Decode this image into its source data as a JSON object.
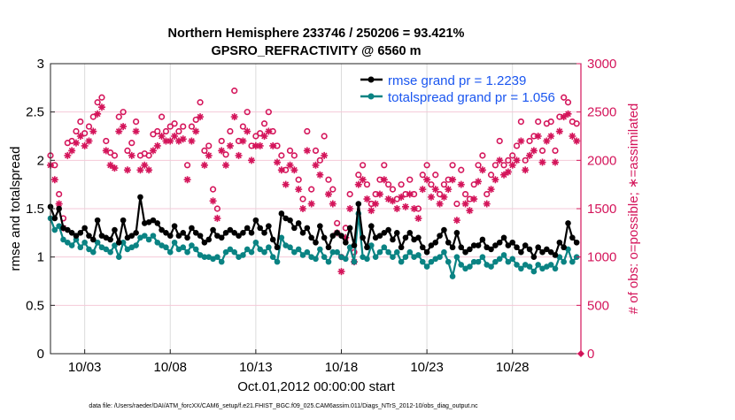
{
  "chart_data": {
    "type": "line",
    "title": [
      "Northern Hemisphere 233746 / 250206 = 93.421%",
      "GPSRO_REFRACTIVITY @ 6560 m"
    ],
    "xlabel": "Oct.01,2012 00:00:00 start",
    "ylabel": "rmse and totalspread",
    "ylabel_right": "# of obs: o=possible; ∗=assimilated",
    "footer": "data file: /Users/raeder/DAI/ATM_forcXX/CAM6_setup/f.e21.FHIST_BGC.f09_025.CAM6assim.011/Diags_NTrS_2012-10/obs_diag_output.nc",
    "x_start": "2012-10-01T00:00",
    "x_step_hours": 6,
    "x_range": [
      "2012-10-01",
      "2012-11-01"
    ],
    "x_ticks": [
      {
        "label": "10/03",
        "day": 2
      },
      {
        "label": "10/08",
        "day": 7
      },
      {
        "label": "10/13",
        "day": 12
      },
      {
        "label": "10/18",
        "day": 17
      },
      {
        "label": "10/23",
        "day": 22
      },
      {
        "label": "10/28",
        "day": 27
      }
    ],
    "ylim": [
      0,
      3
    ],
    "y_ticks": [
      "0",
      "0.5",
      "1",
      "1.5",
      "2",
      "2.5",
      "3"
    ],
    "ylim_right": [
      0,
      3000
    ],
    "y_ticks_right": [
      "0",
      "500",
      "1000",
      "1500",
      "2000",
      "2500",
      "3000"
    ],
    "grid": true,
    "legend_position": "top-right",
    "colors": {
      "rmse": "#000000",
      "totalspread": "#0a8383",
      "obs": "#d4145a",
      "legend_text": "#1a56f0",
      "axis_right": "#d4145a"
    },
    "series": [
      {
        "name": "rmse grand pr = 1.2239",
        "axis": "left",
        "marker": "filled-circle",
        "values": [
          1.52,
          1.4,
          1.5,
          1.3,
          1.28,
          1.25,
          1.22,
          1.25,
          1.3,
          1.22,
          1.18,
          1.38,
          1.22,
          1.2,
          1.18,
          1.28,
          1.15,
          1.38,
          1.2,
          1.22,
          1.25,
          1.62,
          1.35,
          1.36,
          1.38,
          1.35,
          1.28,
          1.25,
          1.22,
          1.32,
          1.22,
          1.25,
          1.2,
          1.3,
          1.25,
          1.22,
          1.15,
          1.18,
          1.28,
          1.22,
          1.2,
          1.25,
          1.28,
          1.25,
          1.22,
          1.25,
          1.3,
          1.25,
          1.38,
          1.3,
          1.25,
          1.32,
          1.18,
          1.1,
          1.45,
          1.4,
          1.38,
          1.3,
          1.35,
          1.25,
          1.3,
          1.2,
          1.15,
          1.32,
          1.2,
          1.1,
          1.22,
          1.25,
          1.22,
          1.15,
          1.3,
          1.12,
          1.55,
          1.2,
          1.1,
          1.32,
          1.2,
          1.22,
          1.25,
          1.28,
          1.18,
          1.25,
          1.1,
          1.2,
          1.25,
          1.18,
          1.2,
          1.1,
          1.05,
          1.12,
          1.15,
          1.22,
          1.28,
          1.15,
          1.1,
          1.25,
          1.1,
          1.05,
          1.08,
          1.12,
          1.12,
          1.18,
          1.1,
          1.08,
          1.12,
          1.15,
          1.2,
          1.12,
          1.15,
          1.1,
          1.05,
          1.12,
          1.08,
          1.0,
          1.1,
          1.05,
          1.08,
          1.05,
          1.02,
          1.15,
          1.1,
          1.35,
          1.2,
          1.15,
          null
        ]
      },
      {
        "name": "totalspread grand pr = 1.056",
        "axis": "left",
        "marker": "filled-circle",
        "values": [
          1.4,
          1.28,
          1.32,
          1.18,
          1.15,
          1.12,
          1.18,
          1.1,
          1.15,
          1.08,
          1.05,
          1.15,
          1.1,
          1.08,
          1.05,
          1.12,
          1.0,
          1.15,
          1.08,
          1.1,
          1.12,
          1.2,
          1.22,
          1.18,
          1.22,
          1.15,
          1.12,
          1.1,
          1.05,
          1.15,
          1.08,
          1.1,
          1.05,
          1.12,
          1.08,
          1.02,
          1.0,
          1.0,
          0.98,
          1.0,
          0.95,
          1.05,
          1.08,
          1.05,
          1.0,
          1.02,
          1.08,
          1.05,
          1.15,
          1.08,
          1.05,
          1.1,
          1.0,
          0.95,
          1.2,
          1.12,
          1.1,
          1.05,
          1.08,
          1.02,
          1.05,
          1.0,
          0.98,
          1.08,
          1.0,
          0.95,
          1.05,
          1.05,
          1.0,
          0.98,
          1.1,
          0.95,
          1.45,
          1.0,
          0.98,
          1.12,
          1.0,
          1.05,
          1.1,
          1.05,
          1.0,
          1.05,
          0.95,
          1.0,
          1.05,
          1.0,
          1.02,
          0.95,
          0.9,
          0.95,
          0.98,
          1.0,
          1.05,
          0.95,
          0.8,
          1.0,
          0.92,
          0.88,
          0.9,
          0.95,
          0.95,
          1.0,
          0.92,
          0.9,
          0.95,
          0.98,
          1.02,
          0.95,
          0.98,
          0.92,
          0.88,
          0.92,
          0.9,
          0.85,
          0.92,
          0.88,
          0.9,
          0.92,
          0.88,
          1.0,
          0.95,
          1.08,
          0.95,
          1.0,
          null
        ]
      },
      {
        "name": "possible",
        "axis": "right",
        "marker": "open-circle",
        "values": [
          2050,
          1950,
          1650,
          1400,
          2180,
          2200,
          2300,
          2400,
          2280,
          2350,
          2450,
          2600,
          2650,
          2200,
          2080,
          2050,
          2450,
          2500,
          2100,
          2180,
          2400,
          2050,
          2070,
          2050,
          2270,
          2300,
          2450,
          2300,
          2350,
          2380,
          2300,
          2350,
          1950,
          2350,
          2420,
          2600,
          2100,
          2150,
          1700,
          1500,
          2200,
          2060,
          2300,
          2720,
          2200,
          2350,
          2500,
          2150,
          2250,
          2280,
          2380,
          2500,
          2300,
          2150,
          2050,
          1900,
          2100,
          2050,
          1800,
          1600,
          2300,
          1700,
          2100,
          2000,
          2250,
          1800,
          1700,
          1350,
          1000,
          1300,
          1650,
          1050,
          1850,
          1950,
          1750,
          1550,
          1650,
          1800,
          1950,
          1750,
          1700,
          1600,
          1750,
          1650,
          1800,
          1650,
          1500,
          1850,
          1950,
          1750,
          1850,
          1650,
          1750,
          1800,
          1950,
          1550,
          1900,
          1650,
          1600,
          1750,
          1950,
          2050,
          1650,
          1850,
          1950,
          2200,
          1950,
          2000,
          2050,
          2150,
          2400,
          2000,
          2200,
          2250,
          2400,
          2100,
          2380,
          2400,
          2100,
          2450,
          2650,
          2600,
          2400,
          2380,
          0
        ]
      },
      {
        "name": "assimilated",
        "axis": "right",
        "marker": "asterisk",
        "values": [
          1950,
          1800,
          1550,
          1300,
          2050,
          2100,
          2180,
          2250,
          2150,
          2200,
          2300,
          2480,
          2550,
          2100,
          1950,
          1920,
          2300,
          2350,
          1900,
          2050,
          2300,
          1900,
          1950,
          1900,
          2100,
          2150,
          2250,
          2200,
          2200,
          2250,
          2200,
          2220,
          1800,
          2200,
          2300,
          2450,
          1950,
          2050,
          1580,
          1400,
          2100,
          1950,
          2150,
          2450,
          2050,
          2200,
          2300,
          2000,
          2150,
          2150,
          2250,
          2300,
          2150,
          1980,
          1900,
          1750,
          1950,
          1900,
          1700,
          1500,
          2100,
          1550,
          1950,
          1850,
          2050,
          1650,
          1550,
          1250,
          850,
          1200,
          1500,
          950,
          1750,
          1800,
          1600,
          1480,
          1550,
          1650,
          1800,
          1600,
          1580,
          1500,
          1620,
          1520,
          1650,
          1500,
          1400,
          1700,
          1800,
          1620,
          1700,
          1550,
          1620,
          1700,
          1800,
          1380,
          1750,
          1550,
          1480,
          1600,
          1780,
          1900,
          1550,
          1700,
          1800,
          2000,
          1850,
          1880,
          1950,
          2000,
          2200,
          1900,
          2050,
          2100,
          2250,
          1980,
          2200,
          2250,
          1980,
          2300,
          2450,
          2480,
          2250,
          2200,
          0
        ]
      }
    ]
  }
}
